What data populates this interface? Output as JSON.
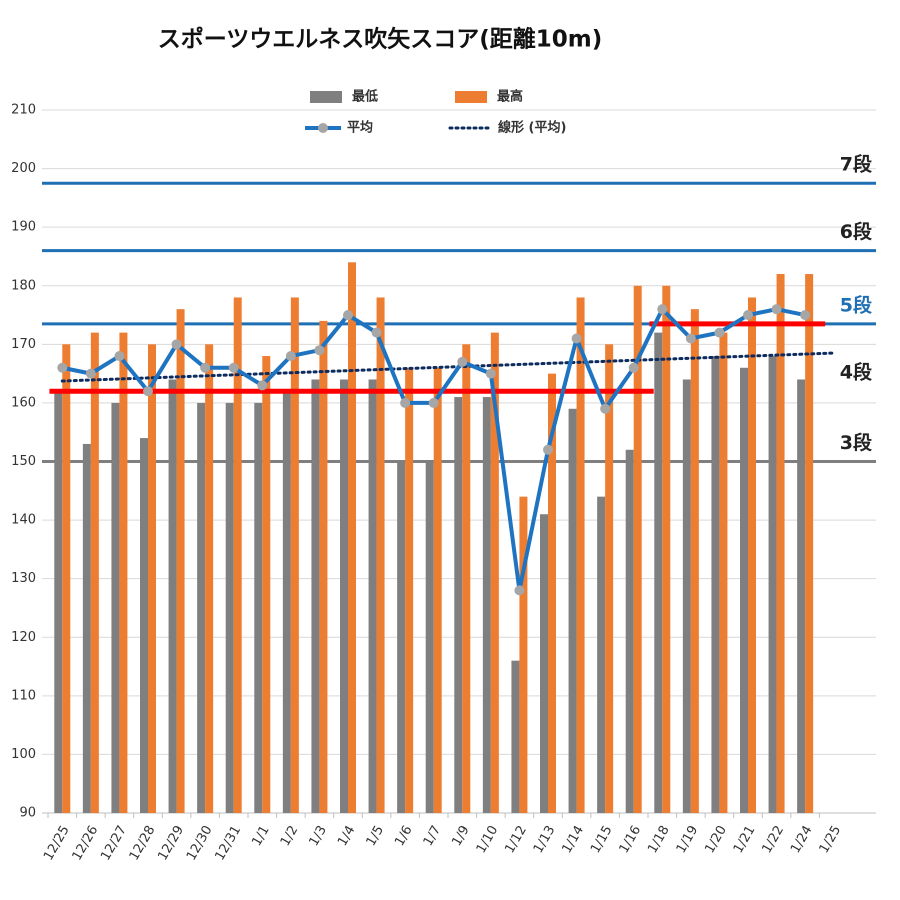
{
  "chart_data": {
    "type": "bar-line",
    "title": "スポーツウエルネス吹矢スコア(距離10m)",
    "categories": [
      "12/25",
      "12/26",
      "12/27",
      "12/28",
      "12/29",
      "12/30",
      "12/31",
      "1/1",
      "1/2",
      "1/3",
      "1/4",
      "1/5",
      "1/6",
      "1/7",
      "1/9",
      "1/10",
      "1/12",
      "1/13",
      "1/14",
      "1/15",
      "1/16",
      "1/18",
      "1/19",
      "1/20",
      "1/21",
      "1/22",
      "1/24",
      "1/25"
    ],
    "series": [
      {
        "name": "最低",
        "kind": "bar",
        "color": "#7f7f7f",
        "values": [
          162,
          153,
          160,
          154,
          164,
          160,
          160,
          160,
          162,
          164,
          164,
          164,
          150,
          150,
          161,
          161,
          116,
          141,
          159,
          144,
          152,
          172,
          164,
          168,
          166,
          168,
          164,
          null
        ]
      },
      {
        "name": "最高",
        "kind": "bar",
        "color": "#ed7d31",
        "values": [
          170,
          172,
          172,
          170,
          176,
          170,
          178,
          168,
          178,
          174,
          184,
          178,
          166,
          166,
          170,
          172,
          144,
          165,
          178,
          170,
          180,
          180,
          176,
          172,
          178,
          182,
          182,
          null
        ]
      },
      {
        "name": "平均",
        "kind": "line",
        "color": "#1f74c2",
        "marker_color": "#a6a6a6",
        "values": [
          166,
          165,
          168,
          162,
          170,
          166,
          166,
          163,
          168,
          169,
          175,
          172,
          160,
          160,
          167,
          165,
          128,
          152,
          171,
          159,
          166,
          176,
          171,
          172,
          175,
          176,
          175,
          null
        ]
      }
    ],
    "trendline": {
      "name": "線形 (平均)",
      "of": "平均",
      "color": "#0d2b5e"
    },
    "reference_lines": [
      {
        "label": "7段",
        "value": 197.5,
        "color": "#1f6fb5",
        "label_color": "#222222",
        "line": true
      },
      {
        "label": "6段",
        "value": 186,
        "color": "#1f6fb5",
        "label_color": "#222222",
        "line": true
      },
      {
        "label": "5段",
        "value": 173.5,
        "color": "#1f6fb5",
        "label_color": "#1f6fb5",
        "line": true
      },
      {
        "label": "4段",
        "value": 162,
        "color": "#1f6fb5",
        "label_color": "#222222",
        "line": false
      },
      {
        "label": "3段",
        "value": 150,
        "color": "#7f7f7f",
        "label_color": "#222222",
        "line": true
      }
    ],
    "targets": [
      {
        "value": 162,
        "from": "12/25",
        "to": "1/16",
        "color": "#ff0000"
      },
      {
        "value": 173.5,
        "from": "1/18",
        "to": "1/24",
        "color": "#ff0000"
      }
    ],
    "ylim": [
      90,
      210
    ],
    "yticks": [
      90,
      100,
      110,
      120,
      130,
      140,
      150,
      160,
      170,
      180,
      190,
      200,
      210
    ],
    "grid": true
  }
}
